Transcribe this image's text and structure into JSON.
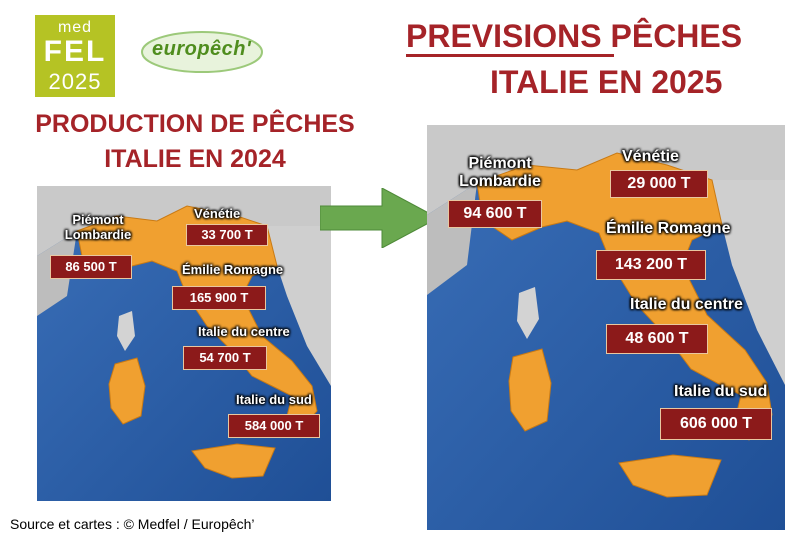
{
  "logos": {
    "medfel": {
      "line1": "med",
      "line2": "FEL",
      "line3": "2025"
    },
    "europech": {
      "text": "europêch'"
    }
  },
  "left_panel": {
    "title_line1": "PRODUCTION DE PÊCHES",
    "title_line2": "ITALIE EN 2024",
    "regions": [
      {
        "label": "Piémont\nLombardie",
        "value": "86 500 T"
      },
      {
        "label": "Vénétie",
        "value": "33 700 T"
      },
      {
        "label": "Émilie Romagne",
        "value": "165 900 T"
      },
      {
        "label": "Italie du centre",
        "value": "54 700 T"
      },
      {
        "label": "Italie du sud",
        "value": "584 000 T"
      }
    ]
  },
  "right_panel": {
    "title_line1_underlined": "PREVISIONS",
    "title_line1_rest": " PÊCHES",
    "title_line2": "ITALIE EN 2025",
    "regions": [
      {
        "label": "Piémont\nLombardie",
        "value": "94 600 T"
      },
      {
        "label": "Vénétie",
        "value": "29 000 T"
      },
      {
        "label": "Émilie Romagne",
        "value": "143 200 T"
      },
      {
        "label": "Italie du centre",
        "value": "48 600 T"
      },
      {
        "label": "Italie du sud",
        "value": "606 000 T"
      }
    ]
  },
  "arrow": {
    "color": "#6aa84f"
  },
  "colors": {
    "title_red": "#a52328",
    "value_box": "#8c1a1a",
    "land_italy": "#f0a030",
    "sea": "#2a5fa8"
  },
  "footer": {
    "source": "Source et cartes : © Medfel / Europêch’"
  }
}
